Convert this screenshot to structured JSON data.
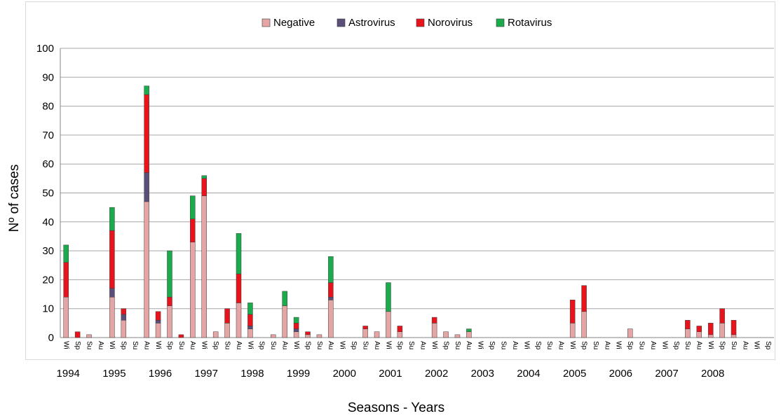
{
  "chart_data": {
    "type": "bar",
    "stacked": true,
    "xlabel": "Seasons - Years",
    "ylabel": "Nº of cases",
    "ylim": [
      0,
      100
    ],
    "yticks": [
      0,
      10,
      20,
      30,
      40,
      50,
      60,
      70,
      80,
      90,
      100
    ],
    "grid": true,
    "legend": "top-center",
    "colors": {
      "Negative": "#e6a5a5",
      "Astrovirus": "#5b4f7a",
      "Norovirus": "#e8131b",
      "Rotavirus": "#1aab4c"
    },
    "categories": [
      "Wi",
      "Sp",
      "Su",
      "Au",
      "Wi",
      "Sp",
      "Su",
      "Au",
      "Wi",
      "Sp",
      "Su",
      "Au",
      "Wi",
      "Sp",
      "Su",
      "Au",
      "Wi",
      "Sp",
      "Su",
      "Au",
      "Wi",
      "Sp",
      "Su",
      "Au",
      "Wi",
      "Sp",
      "Su",
      "Au",
      "Wi",
      "Sp",
      "Su",
      "Au",
      "Wi",
      "Sp",
      "Su",
      "Au",
      "Wi",
      "Sp",
      "Su",
      "Au",
      "Wi",
      "Sp",
      "Su",
      "Au",
      "Wi",
      "Sp",
      "Su",
      "Au",
      "Wi",
      "Sp",
      "Su",
      "Au",
      "Wi",
      "Sp",
      "Su",
      "Au",
      "Wi",
      "Sp",
      "Su",
      "Au",
      "Wi",
      "Sp"
    ],
    "year_labels": [
      {
        "label": "1994",
        "index": 0
      },
      {
        "label": "1995",
        "index": 4
      },
      {
        "label": "1996",
        "index": 8
      },
      {
        "label": "1997",
        "index": 12
      },
      {
        "label": "1998",
        "index": 16
      },
      {
        "label": "1999",
        "index": 20
      },
      {
        "label": "2000",
        "index": 24
      },
      {
        "label": "2001",
        "index": 28
      },
      {
        "label": "2002",
        "index": 32
      },
      {
        "label": "2003",
        "index": 36
      },
      {
        "label": "2004",
        "index": 40
      },
      {
        "label": "2005",
        "index": 44
      },
      {
        "label": "2006",
        "index": 48
      },
      {
        "label": "2007",
        "index": 52
      },
      {
        "label": "2008",
        "index": 56
      }
    ],
    "series": [
      {
        "name": "Negative",
        "values": [
          14,
          0,
          1,
          0,
          14,
          6,
          0,
          47,
          5,
          11,
          0,
          33,
          49,
          2,
          5,
          12,
          3,
          0,
          1,
          11,
          2,
          1,
          1,
          13,
          0,
          0,
          3,
          2,
          9,
          2,
          0,
          0,
          5,
          2,
          1,
          2,
          0,
          0,
          0,
          0,
          0,
          0,
          0,
          0,
          5,
          9,
          0,
          0,
          0,
          3,
          0,
          0,
          0,
          0,
          3,
          2,
          1,
          5,
          1,
          0,
          0,
          0
        ]
      },
      {
        "name": "Astrovirus",
        "values": [
          0,
          0,
          0,
          0,
          3,
          2,
          0,
          10,
          1,
          0,
          0,
          0,
          0,
          0,
          0,
          0,
          1,
          0,
          0,
          0,
          1,
          0,
          0,
          1,
          0,
          0,
          0,
          0,
          0,
          0,
          0,
          0,
          0,
          0,
          0,
          0,
          0,
          0,
          0,
          0,
          0,
          0,
          0,
          0,
          0,
          0,
          0,
          0,
          0,
          0,
          0,
          0,
          0,
          0,
          0,
          0,
          0,
          0,
          0,
          0,
          0,
          0
        ]
      },
      {
        "name": "Norovirus",
        "values": [
          12,
          2,
          0,
          0,
          20,
          2,
          0,
          27,
          3,
          3,
          1,
          8,
          6,
          0,
          5,
          10,
          4,
          0,
          0,
          0,
          2,
          1,
          0,
          5,
          0,
          0,
          1,
          0,
          0,
          2,
          0,
          0,
          2,
          0,
          0,
          0,
          0,
          0,
          0,
          0,
          0,
          0,
          0,
          0,
          8,
          9,
          0,
          0,
          0,
          0,
          0,
          0,
          0,
          0,
          3,
          2,
          4,
          5,
          5,
          0,
          0,
          0
        ]
      },
      {
        "name": "Rotavirus",
        "values": [
          6,
          0,
          0,
          0,
          8,
          0,
          0,
          3,
          0,
          16,
          0,
          8,
          1,
          0,
          0,
          14,
          4,
          0,
          0,
          5,
          2,
          0,
          0,
          9,
          0,
          0,
          0,
          0,
          10,
          0,
          0,
          0,
          0,
          0,
          0,
          1,
          0,
          0,
          0,
          0,
          0,
          0,
          0,
          0,
          0,
          0,
          0,
          0,
          0,
          0,
          0,
          0,
          0,
          0,
          0,
          0,
          0,
          0,
          0,
          0,
          0,
          0
        ]
      }
    ]
  }
}
